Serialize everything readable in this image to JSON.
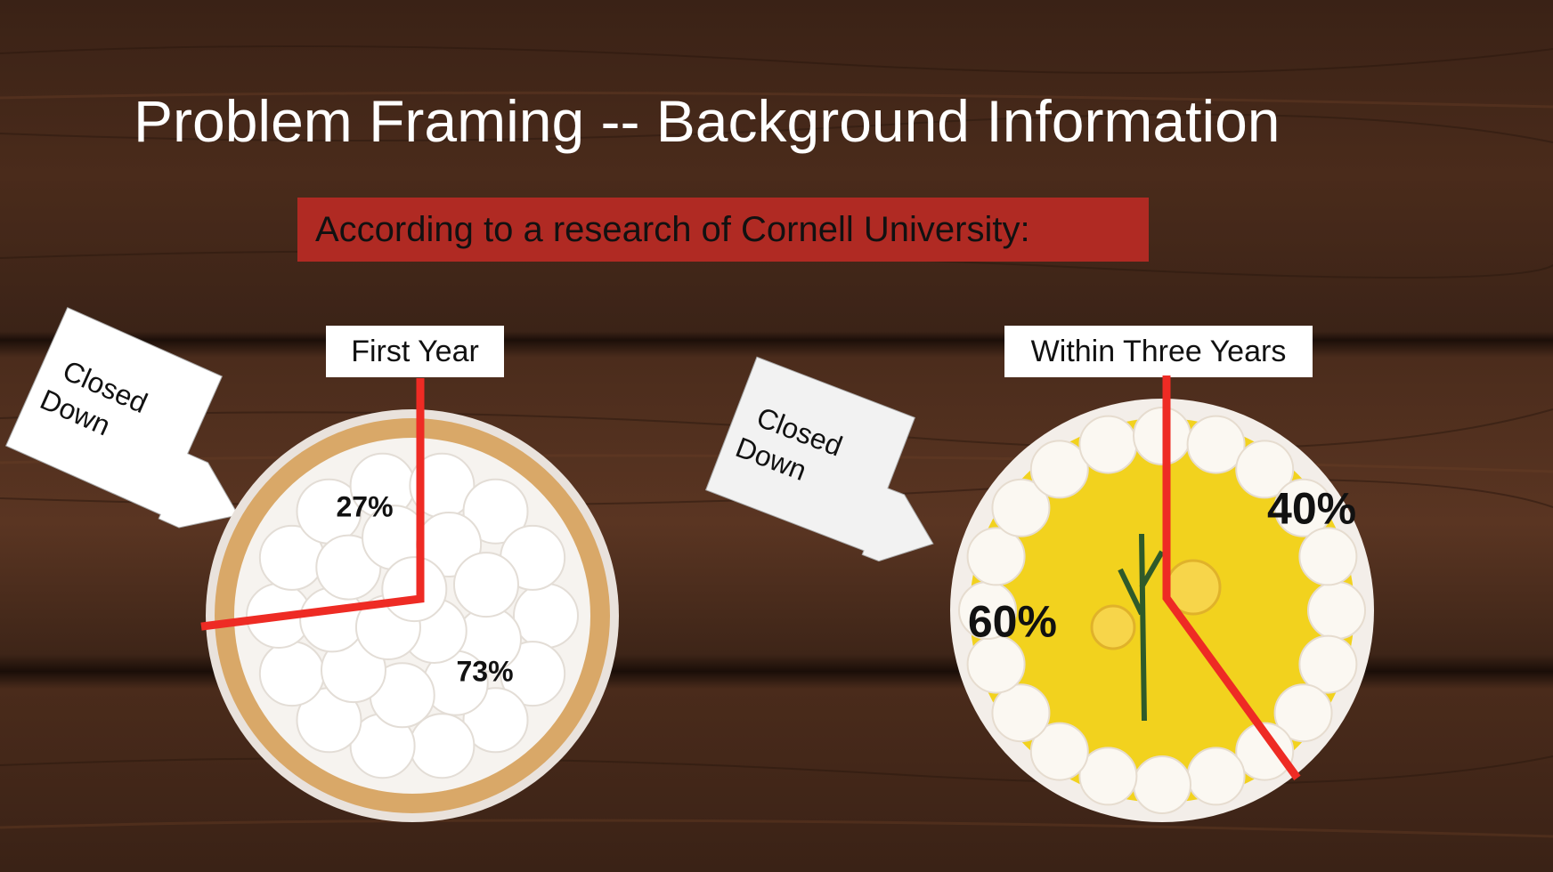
{
  "slide": {
    "title": "Problem Framing -- Background Information",
    "subtitle": "According to a research of Cornell University:"
  },
  "callouts": {
    "left": [
      "Closed",
      "Down"
    ],
    "right": [
      "Closed",
      "Down"
    ]
  },
  "colors": {
    "accent_red": "#b02a23",
    "divider_red": "#ee2b24",
    "wood_dark": "#3a2216",
    "pie1_topping": "#ffffff",
    "pie2_filling": "#f2d21e"
  },
  "chart_data": [
    {
      "type": "pie",
      "title": "First Year",
      "categories": [
        "Closed Down",
        ""
      ],
      "values": [
        27,
        73
      ],
      "labels": [
        "27%",
        "73%"
      ]
    },
    {
      "type": "pie",
      "title": "Within Three Years",
      "categories": [
        "Closed Down",
        ""
      ],
      "values": [
        60,
        40
      ],
      "labels": [
        "60%",
        "40%"
      ]
    }
  ]
}
